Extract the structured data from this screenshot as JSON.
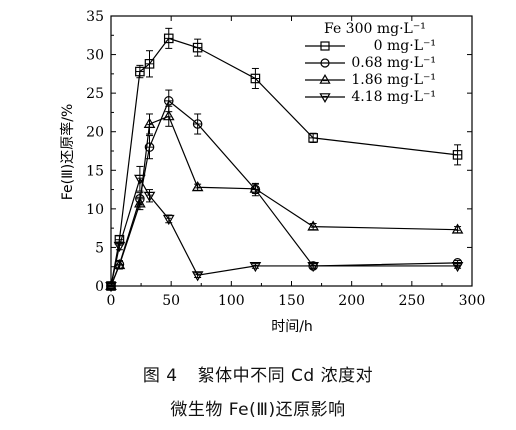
{
  "chart_data": {
    "type": "line",
    "xlabel": "时间/h",
    "ylabel": "Fe(Ⅲ)还原率/%",
    "xlim": [
      0,
      300
    ],
    "ylim": [
      0,
      35
    ],
    "xticks": [
      0,
      50,
      100,
      150,
      200,
      250,
      300
    ],
    "yticks": [
      0,
      5,
      10,
      15,
      20,
      25,
      30,
      35
    ],
    "grid": false,
    "legend_title": "Fe 300 mg·L⁻¹",
    "legend_position": "top-right",
    "series": [
      {
        "name": "0 mg·L⁻¹",
        "marker": "square",
        "points": [
          [
            0,
            0
          ],
          [
            7,
            6
          ],
          [
            24,
            27.8
          ],
          [
            32,
            28.8
          ],
          [
            48,
            32.1
          ],
          [
            72,
            30.9
          ],
          [
            120,
            26.9
          ],
          [
            168,
            19.2
          ],
          [
            288,
            17.0
          ]
        ],
        "errors": [
          0.3,
          0.5,
          0.8,
          1.7,
          1.3,
          1.1,
          1.3,
          0.6,
          1.3
        ]
      },
      {
        "name": "0.68 mg·L⁻¹",
        "marker": "circle",
        "points": [
          [
            0,
            0
          ],
          [
            7,
            2.8
          ],
          [
            24,
            11.3
          ],
          [
            32,
            18.0
          ],
          [
            48,
            24.0
          ],
          [
            72,
            21.0
          ],
          [
            120,
            12.5
          ],
          [
            168,
            2.6
          ],
          [
            288,
            3.0
          ]
        ],
        "errors": [
          0.3,
          0.5,
          0.8,
          1.5,
          1.4,
          1.3,
          0.8,
          0.3,
          0.3
        ]
      },
      {
        "name": "1.86 mg·L⁻¹",
        "marker": "triangle-up",
        "points": [
          [
            0,
            0
          ],
          [
            7,
            2.7
          ],
          [
            24,
            10.7
          ],
          [
            32,
            21.0
          ],
          [
            48,
            22.0
          ],
          [
            72,
            12.8
          ],
          [
            120,
            12.6
          ],
          [
            168,
            7.7
          ],
          [
            288,
            7.3
          ]
        ],
        "errors": [
          0.3,
          0.5,
          0.8,
          1.3,
          1.3,
          0.4,
          0.6,
          0.4,
          0.4
        ]
      },
      {
        "name": "4.18 mg·L⁻¹",
        "marker": "triangle-down",
        "points": [
          [
            0,
            0
          ],
          [
            7,
            5.2
          ],
          [
            24,
            13.9
          ],
          [
            32,
            11.7
          ],
          [
            48,
            8.7
          ],
          [
            72,
            1.4
          ],
          [
            120,
            2.6
          ],
          [
            168,
            2.6
          ],
          [
            288,
            2.6
          ]
        ],
        "errors": [
          0.3,
          0.5,
          1.6,
          0.8,
          0.5,
          0.3,
          0.3,
          0.3,
          0.3
        ]
      }
    ]
  },
  "caption": {
    "number": "图 4",
    "line1": "絮体中不同 Cd 浓度对",
    "line2": "微生物 Fe(Ⅲ)还原影响"
  }
}
